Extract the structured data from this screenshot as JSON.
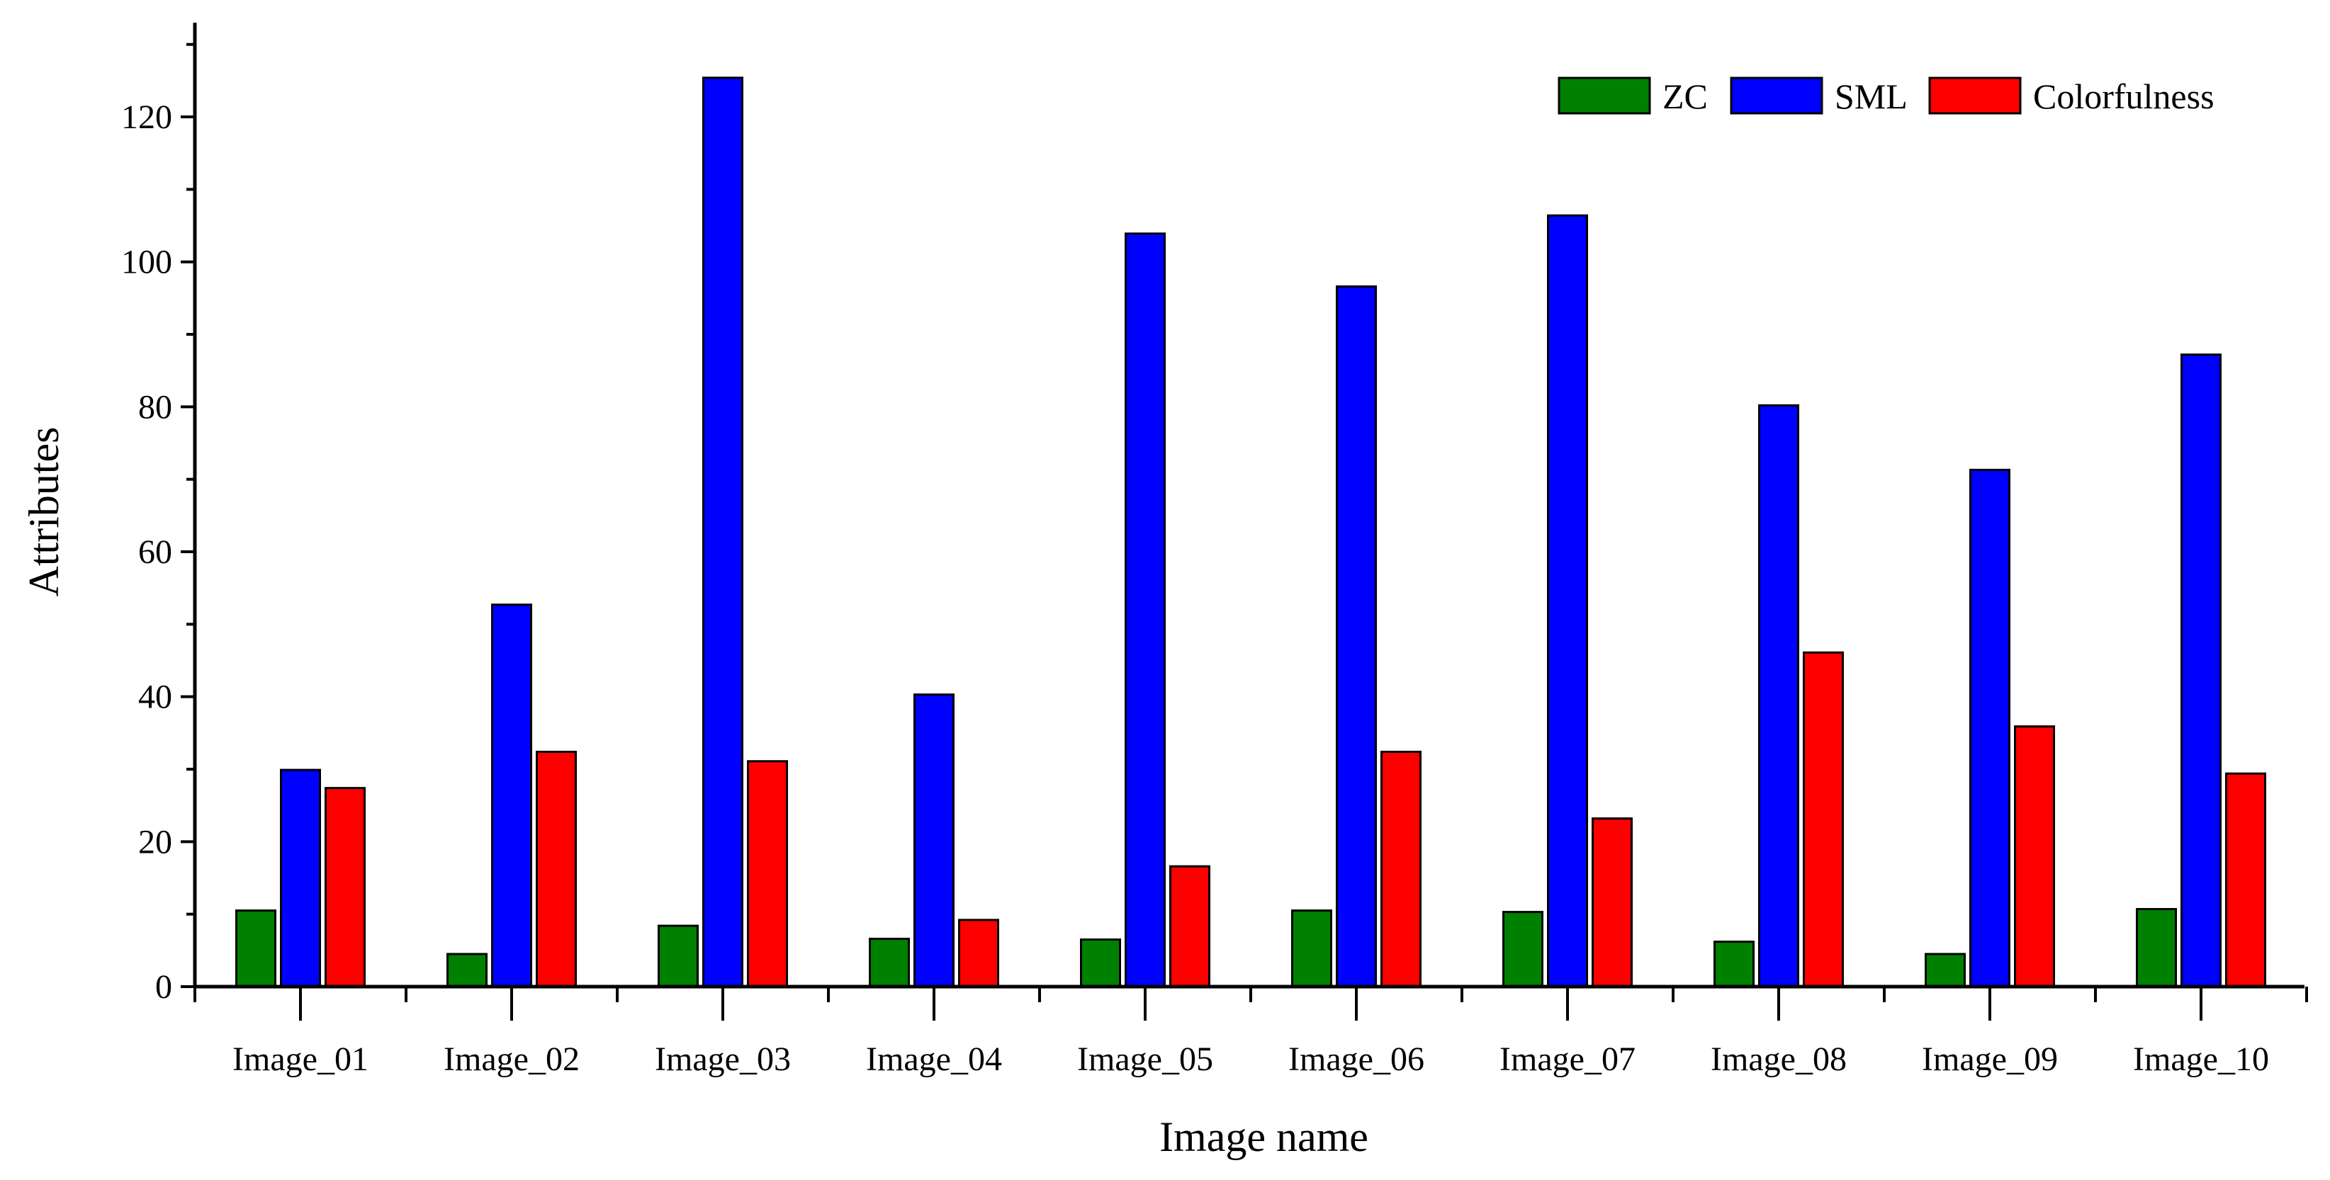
{
  "chart_data": {
    "type": "bar",
    "title": "",
    "xlabel": "Image name",
    "ylabel": "Attributes",
    "ylim": [
      0,
      133
    ],
    "yticks": [
      0,
      20,
      40,
      60,
      80,
      100,
      120
    ],
    "grid": false,
    "legend_position": "top-right",
    "categories": [
      "Image_01",
      "Image_02",
      "Image_03",
      "Image_04",
      "Image_05",
      "Image_06",
      "Image_07",
      "Image_08",
      "Image_09",
      "Image_10"
    ],
    "series": [
      {
        "name": "ZC",
        "color": "#008000",
        "values": [
          10.5,
          4.5,
          8.4,
          6.6,
          6.5,
          10.5,
          10.3,
          6.2,
          4.5,
          10.7
        ]
      },
      {
        "name": "SML",
        "color": "#0000ff",
        "values": [
          29.9,
          52.7,
          125.4,
          40.3,
          103.9,
          96.6,
          106.4,
          80.2,
          71.3,
          87.2
        ]
      },
      {
        "name": "Colorfulness",
        "color": "#ff0000",
        "values": [
          27.4,
          32.4,
          31.1,
          9.2,
          16.6,
          32.4,
          23.2,
          46.1,
          35.9,
          29.4
        ]
      }
    ]
  }
}
